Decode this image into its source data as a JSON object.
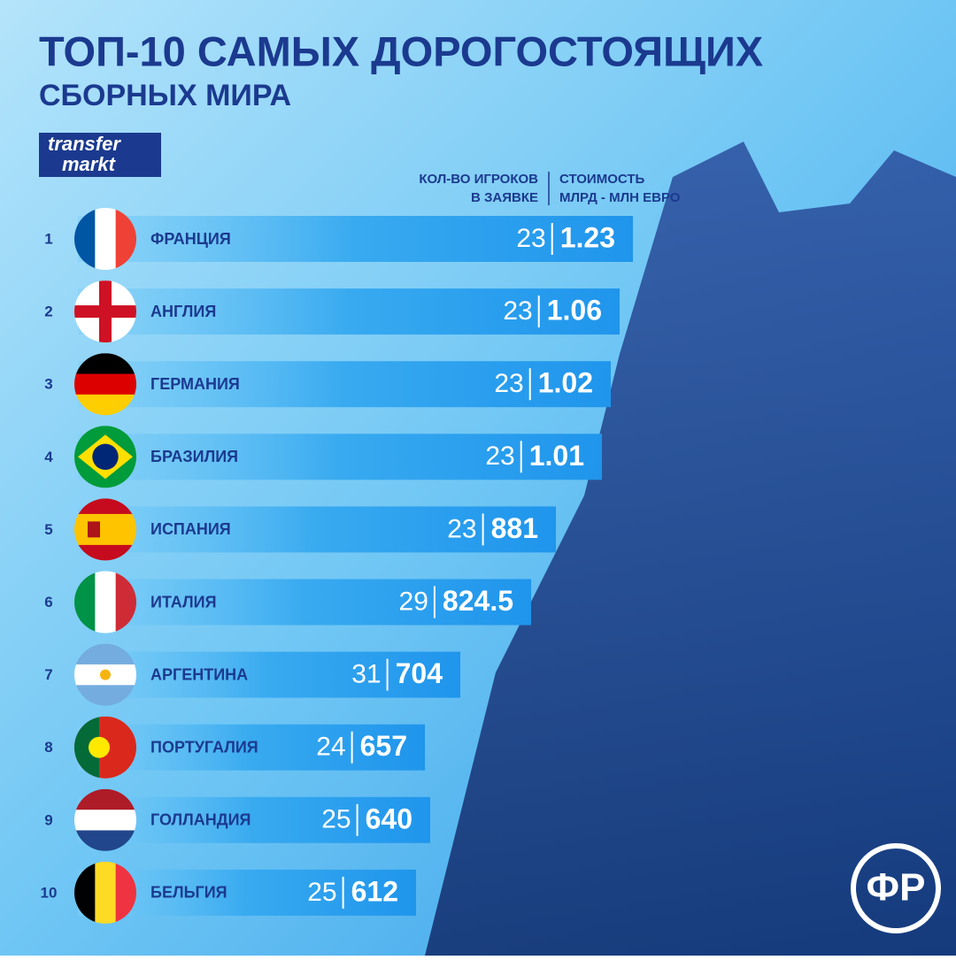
{
  "header": {
    "title_line1": "ТОП-10 САМЫХ ДОРОГОСТОЯЩИХ",
    "title_line2": "СБОРНЫХ МИРА",
    "logo_line1": "transfer",
    "logo_line2": "markt"
  },
  "columns": {
    "players_line1": "КОЛ-ВО ИГРОКОВ",
    "players_line2": "В ЗАЯВКЕ",
    "value_line1": "СТОИМОСТЬ",
    "value_line2": "МЛРД - МЛН ЕВРО"
  },
  "rows": [
    {
      "rank": 1,
      "country": "ФРАНЦИЯ",
      "players": 23,
      "value": 1.23
    },
    {
      "rank": 2,
      "country": "АНГЛИЯ",
      "players": 23,
      "value": 1.06
    },
    {
      "rank": 3,
      "country": "ГЕРМАНИЯ",
      "players": 23,
      "value": 1.02
    },
    {
      "rank": 4,
      "country": "БРАЗИЛИЯ",
      "players": 23,
      "value": 1.01
    },
    {
      "rank": 5,
      "country": "ИСПАНИЯ",
      "players": 23,
      "value": 881
    },
    {
      "rank": 6,
      "country": "ИТАЛИЯ",
      "players": 29,
      "value": 824.5
    },
    {
      "rank": 7,
      "country": "АРГЕНТИНА",
      "players": 31,
      "value": 704
    },
    {
      "rank": 8,
      "country": "ПОРТУГАЛИЯ",
      "players": 24,
      "value": 657
    },
    {
      "rank": 9,
      "country": "ГОЛЛАНДИЯ",
      "players": 25,
      "value": 640
    },
    {
      "rank": 10,
      "country": "БЕЛЬГИЯ",
      "players": 25,
      "value": 612
    }
  ],
  "badge": "ФР"
}
